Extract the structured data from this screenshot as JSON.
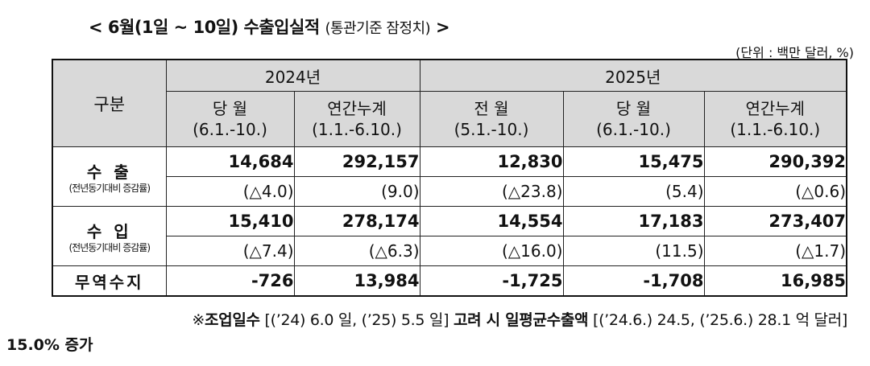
{
  "title": {
    "main": "< 6월(1일 ~ 10일) 수출입실적",
    "sub": "(통관기준 잠정치)",
    "end": ">"
  },
  "unit": "(단위 : 백만 달러, %)",
  "header": {
    "category": "구분",
    "year_2024": "2024년",
    "year_2025": "2025년",
    "columns": [
      {
        "line1": "당 월",
        "line2": "(6.1.-10.)"
      },
      {
        "line1": "연간누계",
        "line2": "(1.1.-6.10.)"
      },
      {
        "line1": "전 월",
        "line2": "(5.1.-10.)"
      },
      {
        "line1": "당 월",
        "line2": "(6.1.-10.)"
      },
      {
        "line1": "연간누계",
        "line2": "(1.1.-6.10.)"
      }
    ]
  },
  "rows": [
    {
      "label": "수 출",
      "sublabel": "(전년동기대비 증감률)",
      "values": [
        "14,684",
        "292,157",
        "12,830",
        "15,475",
        "290,392"
      ],
      "rates": [
        "(△4.0)",
        "(9.0)",
        "(△23.8)",
        "(5.4)",
        "(△0.6)"
      ]
    },
    {
      "label": "수 입",
      "sublabel": "(전년동기대비 증감률)",
      "values": [
        "15,410",
        "278,174",
        "14,554",
        "17,183",
        "273,407"
      ],
      "rates": [
        "(△7.4)",
        "(△6.3)",
        "(△16.0)",
        "(11.5)",
        "(△1.7)"
      ]
    }
  ],
  "trade_balance": {
    "label": "무역수지",
    "values": [
      "-726",
      "13,984",
      "-1,725",
      "-1,708",
      "16,985"
    ]
  },
  "note": {
    "prefix": "※",
    "bold1": "조업일수",
    "text1": " [(’24) 6.0 일, (’25) 5.5 일] ",
    "bold2": "고려 시 일평균수출액",
    "text2": " [(’24.6.) 24.5, (’25.6.) 28.1 억 달러]",
    "line2": "15.0% 증가"
  }
}
